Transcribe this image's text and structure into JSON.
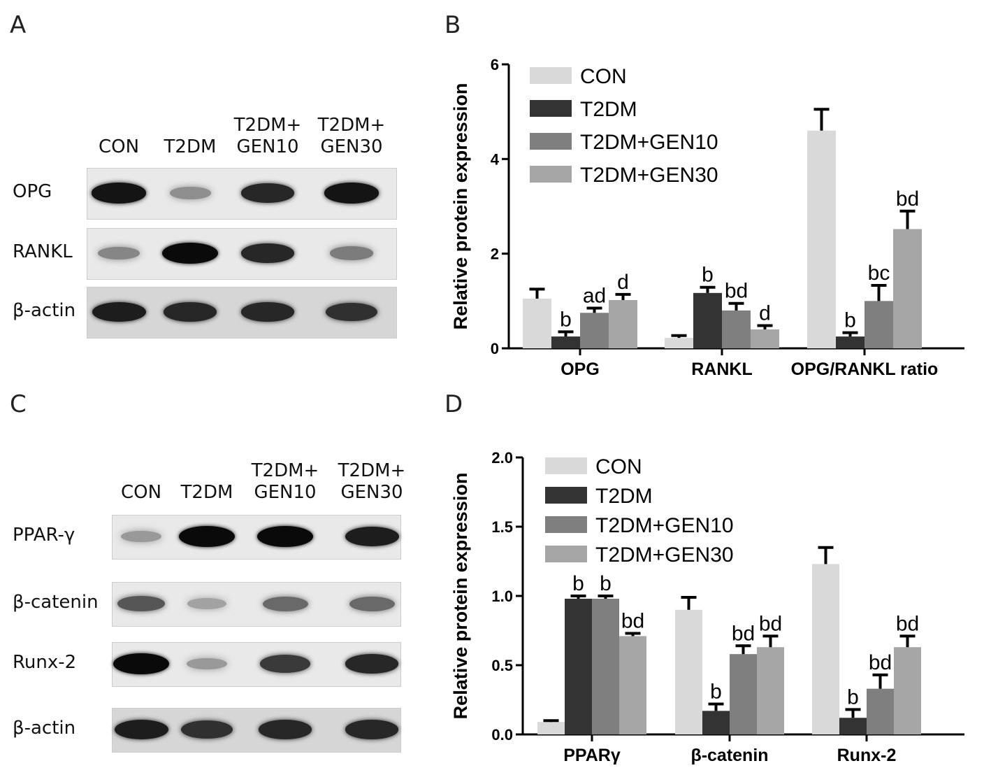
{
  "panels": [
    "A",
    "B",
    "C",
    "D"
  ],
  "blotA": {
    "lanes": [
      [
        "CON"
      ],
      [
        "T2DM"
      ],
      [
        "T2DM+",
        "GEN10"
      ],
      [
        "T2DM+",
        "GEN30"
      ]
    ],
    "rows": [
      {
        "label": "OPG",
        "bands": [
          0.95,
          0.3,
          0.85,
          0.95
        ]
      },
      {
        "label": "RANKL",
        "bands": [
          0.35,
          1.0,
          0.85,
          0.4
        ]
      },
      {
        "label": "β-actin",
        "bands": [
          0.9,
          0.85,
          0.85,
          0.8
        ]
      }
    ]
  },
  "blotC": {
    "lanes": [
      [
        "CON"
      ],
      [
        "T2DM"
      ],
      [
        "T2DM+",
        "GEN10"
      ],
      [
        "T2DM+",
        "GEN30"
      ]
    ],
    "rows": [
      {
        "label": "PPAR-γ",
        "bands": [
          0.25,
          1.0,
          1.0,
          0.9
        ]
      },
      {
        "label": "β-catenin",
        "bands": [
          0.6,
          0.2,
          0.5,
          0.5
        ]
      },
      {
        "label": "Runx-2",
        "bands": [
          1.0,
          0.25,
          0.75,
          0.85
        ]
      },
      {
        "label": "β-actin",
        "bands": [
          0.9,
          0.8,
          0.85,
          0.85
        ]
      }
    ]
  },
  "chart_data": [
    {
      "type": "bar",
      "ylabel": "Relative protein expression",
      "ylim": [
        0,
        6
      ],
      "yticks": [
        0,
        2,
        4,
        6
      ],
      "categories": [
        "OPG",
        "RANKL",
        "OPG/RANKL ratio"
      ],
      "legend": "top-left",
      "series": [
        {
          "name": "CON",
          "color": "#d9d9d9",
          "values": [
            1.05,
            0.22,
            4.6
          ],
          "errors": [
            0.2,
            0.05,
            0.45
          ],
          "labels": [
            "",
            "",
            ""
          ]
        },
        {
          "name": "T2DM",
          "color": "#333333",
          "values": [
            0.25,
            1.17,
            0.25
          ],
          "errors": [
            0.1,
            0.12,
            0.08
          ],
          "labels": [
            "b",
            "b",
            "b"
          ]
        },
        {
          "name": "T2DM+GEN10",
          "color": "#7f7f7f",
          "values": [
            0.75,
            0.8,
            1.0
          ],
          "errors": [
            0.1,
            0.15,
            0.33
          ],
          "labels": [
            "ad",
            "bd",
            "bc"
          ]
        },
        {
          "name": "T2DM+GEN30",
          "color": "#a6a6a6",
          "values": [
            1.02,
            0.4,
            2.52
          ],
          "errors": [
            0.12,
            0.08,
            0.38
          ],
          "labels": [
            "d",
            "d",
            "bd"
          ]
        }
      ]
    },
    {
      "type": "bar",
      "ylabel": "Relative protein expression",
      "ylim": [
        0,
        2.0
      ],
      "yticks": [
        "0.0",
        "0.5",
        "1.0",
        "1.5",
        "2.0"
      ],
      "categories": [
        "PPARγ",
        "β-catenin",
        "Runx-2"
      ],
      "legend": "top-left",
      "series": [
        {
          "name": "CON",
          "color": "#d9d9d9",
          "values": [
            0.09,
            0.9,
            1.23
          ],
          "errors": [
            0.01,
            0.09,
            0.12
          ],
          "labels": [
            "",
            "",
            ""
          ]
        },
        {
          "name": "T2DM",
          "color": "#333333",
          "values": [
            0.98,
            0.17,
            0.12
          ],
          "errors": [
            0.02,
            0.05,
            0.06
          ],
          "labels": [
            "b",
            "b",
            "b"
          ]
        },
        {
          "name": "T2DM+GEN10",
          "color": "#7f7f7f",
          "values": [
            0.98,
            0.58,
            0.33
          ],
          "errors": [
            0.02,
            0.06,
            0.1
          ],
          "labels": [
            "b",
            "bd",
            "bd"
          ]
        },
        {
          "name": "T2DM+GEN30",
          "color": "#a6a6a6",
          "values": [
            0.71,
            0.63,
            0.63
          ],
          "errors": [
            0.02,
            0.08,
            0.08
          ],
          "labels": [
            "bd",
            "bd",
            "bd"
          ]
        }
      ]
    }
  ]
}
